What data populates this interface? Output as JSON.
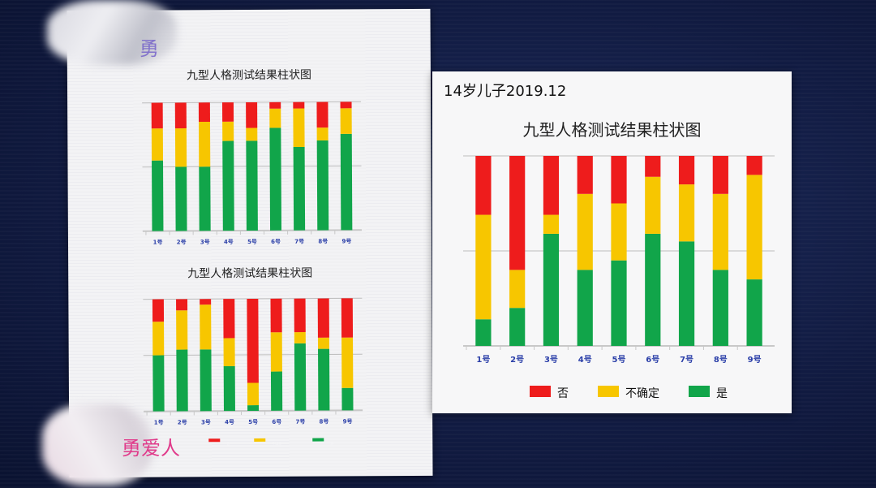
{
  "photo": {
    "handwriting_top": "勇",
    "handwriting_bottom": "勇爱人"
  },
  "colors": {
    "no": "#ee1c1c",
    "unsure": "#f7c600",
    "yes": "#11a54a"
  },
  "left_paper": {
    "top_chart_title": "九型人格测试结果柱状图",
    "bottom_chart_title": "九型人格测试结果柱状图"
  },
  "right_paper": {
    "note": "14岁儿子2019.12",
    "chart_title": "九型人格测试结果柱状图"
  },
  "chart_data": [
    {
      "type": "bar",
      "stacked": true,
      "title": "九型人格测试结果柱状图",
      "categories": [
        "1号",
        "2号",
        "3号",
        "4号",
        "5号",
        "6号",
        "7号",
        "8号",
        "9号"
      ],
      "series": [
        {
          "name": "是",
          "color": "#11a54a",
          "values": [
            55,
            50,
            50,
            70,
            70,
            80,
            65,
            70,
            75
          ]
        },
        {
          "name": "不确定",
          "color": "#f7c600",
          "values": [
            25,
            30,
            35,
            15,
            10,
            15,
            30,
            10,
            20
          ]
        },
        {
          "name": "否",
          "color": "#ee1c1c",
          "values": [
            20,
            20,
            15,
            15,
            20,
            5,
            5,
            20,
            5
          ]
        }
      ],
      "grid": true,
      "legend": "bottom"
    },
    {
      "type": "bar",
      "stacked": true,
      "title": "九型人格测试结果柱状图",
      "categories": [
        "1号",
        "2号",
        "3号",
        "4号",
        "5号",
        "6号",
        "7号",
        "8号",
        "9号"
      ],
      "series": [
        {
          "name": "是",
          "color": "#11a54a",
          "values": [
            50,
            55,
            55,
            40,
            5,
            35,
            60,
            55,
            20
          ]
        },
        {
          "name": "不确定",
          "color": "#f7c600",
          "values": [
            30,
            35,
            40,
            25,
            20,
            35,
            10,
            10,
            45
          ]
        },
        {
          "name": "否",
          "color": "#ee1c1c",
          "values": [
            20,
            10,
            5,
            35,
            75,
            30,
            30,
            35,
            35
          ]
        }
      ],
      "grid": true,
      "legend": "bottom"
    },
    {
      "type": "bar",
      "stacked": true,
      "title": "九型人格测试结果柱状图",
      "categories": [
        "1号",
        "2号",
        "3号",
        "4号",
        "5号",
        "6号",
        "7号",
        "8号",
        "9号"
      ],
      "series": [
        {
          "name": "是",
          "color": "#11a54a",
          "values": [
            14,
            20,
            59,
            40,
            45,
            59,
            55,
            40,
            35
          ]
        },
        {
          "name": "不确定",
          "color": "#f7c600",
          "values": [
            55,
            20,
            10,
            40,
            30,
            30,
            30,
            40,
            55
          ]
        },
        {
          "name": "否",
          "color": "#ee1c1c",
          "values": [
            31,
            60,
            31,
            20,
            25,
            11,
            15,
            20,
            10
          ]
        }
      ],
      "grid": true,
      "legend": "bottom"
    }
  ]
}
